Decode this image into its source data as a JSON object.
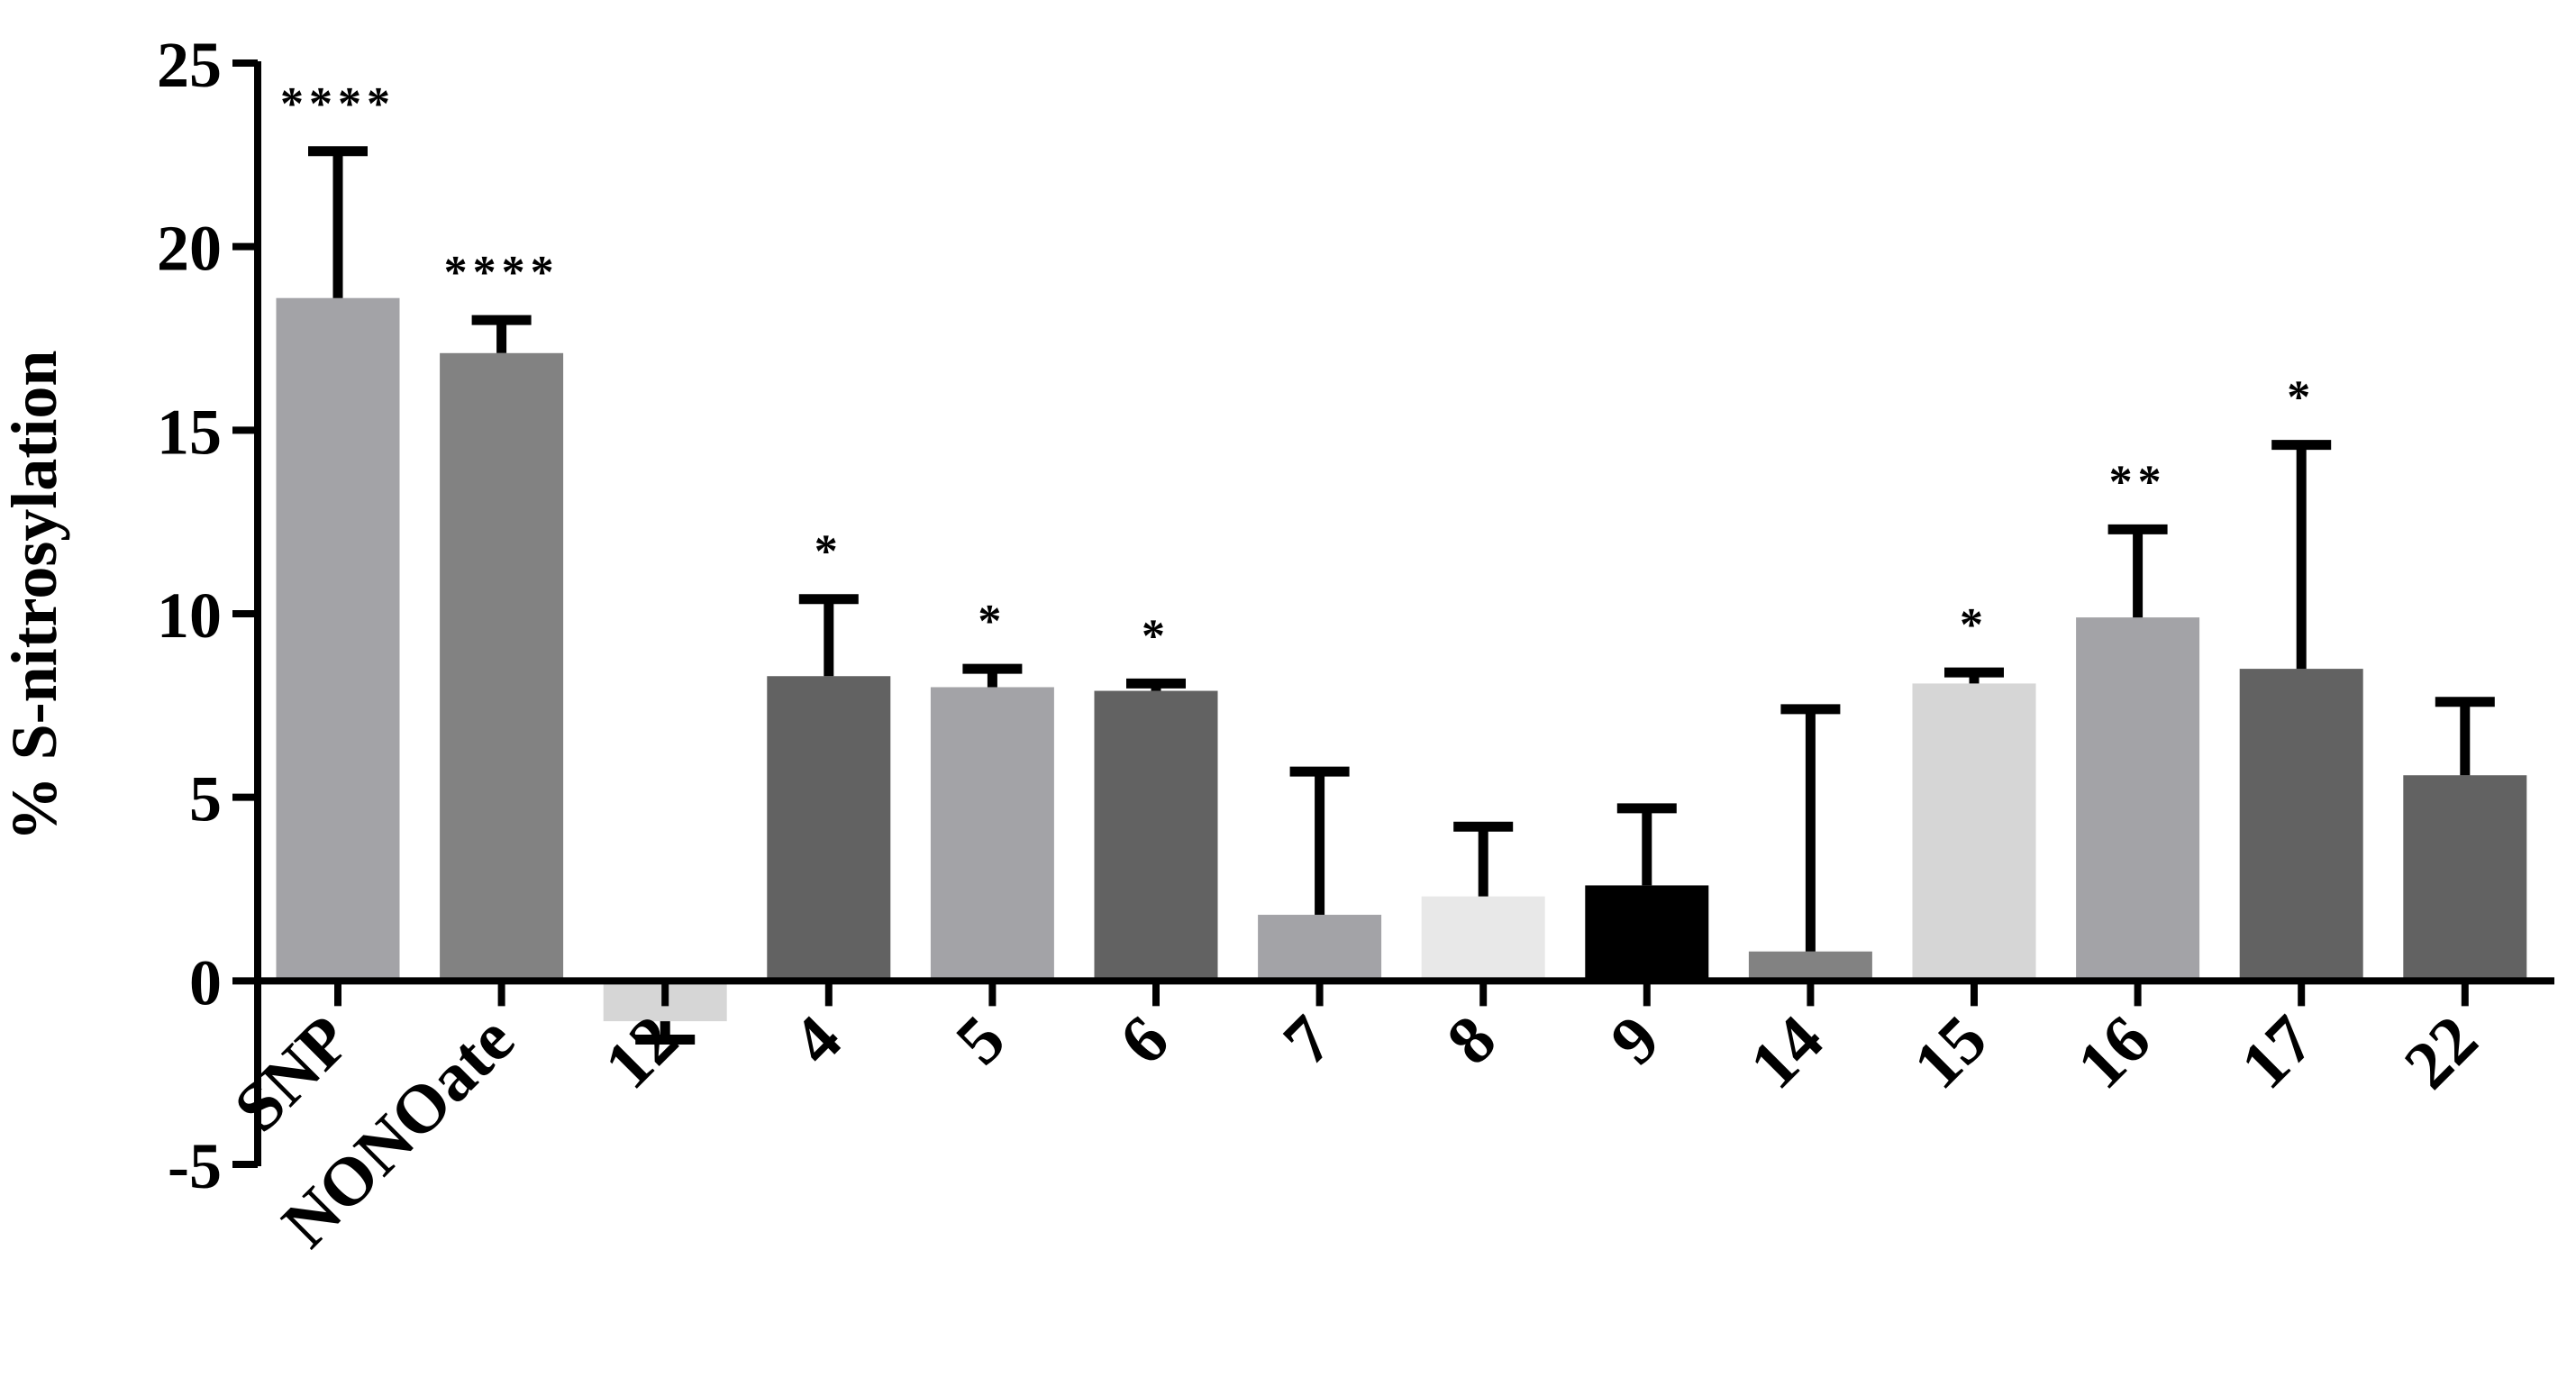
{
  "chart_data": {
    "type": "bar",
    "ylabel": "% S-nitrosylation",
    "xlabel": "",
    "ylim": [
      -5,
      25
    ],
    "yticks": [
      -5,
      0,
      5,
      10,
      15,
      20,
      25
    ],
    "grid": false,
    "categories": [
      "SNP",
      "NONOate",
      "12",
      "4",
      "5",
      "6",
      "7",
      "8",
      "9",
      "14",
      "15",
      "16",
      "17",
      "22"
    ],
    "values": [
      18.6,
      17.1,
      -1.1,
      8.3,
      8.0,
      7.9,
      1.8,
      2.3,
      2.6,
      0.8,
      8.1,
      9.9,
      8.5,
      5.6
    ],
    "error_upper": [
      22.6,
      18.0,
      -1.6,
      10.4,
      8.5,
      8.1,
      5.7,
      4.2,
      4.7,
      7.4,
      8.4,
      12.3,
      14.6,
      7.6
    ],
    "significance": [
      "****",
      "****",
      "",
      "*",
      "*",
      "*",
      "",
      "",
      "",
      "",
      "*",
      "**",
      "*",
      ""
    ],
    "colors": [
      "#a3a3a7",
      "#828282",
      "#d6d6d6",
      "#626262",
      "#a3a3a7",
      "#626262",
      "#a3a3a7",
      "#e8e8e8",
      "#000000",
      "#828282",
      "#d6d6d6",
      "#a3a3a7",
      "#626262",
      "#626262"
    ]
  }
}
